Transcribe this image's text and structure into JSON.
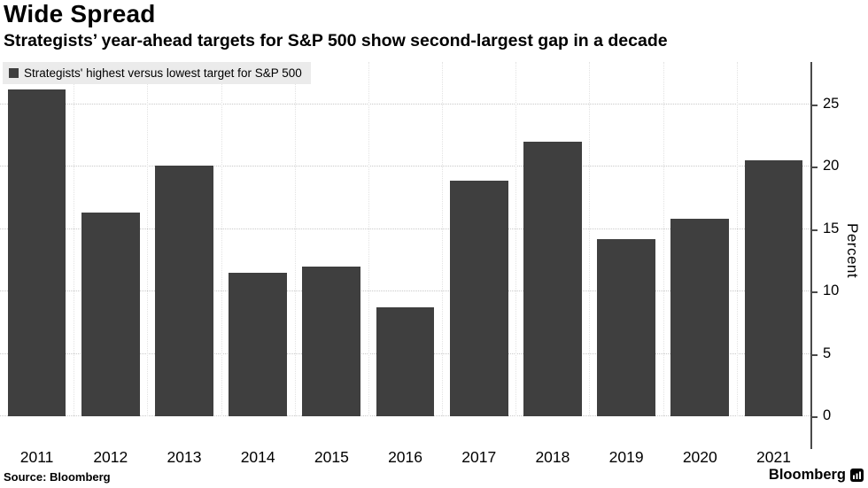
{
  "header": {
    "title": "Wide Spread",
    "subtitle": "Strategists’ year-ahead targets for S&P 500 show second-largest gap in a decade"
  },
  "legend": {
    "label": "Strategists' highest versus lowest target for S&P 500",
    "swatch_color": "#3f3f3f"
  },
  "chart_data": {
    "type": "bar",
    "title": "Wide Spread",
    "categories": [
      "2011",
      "2012",
      "2013",
      "2014",
      "2015",
      "2016",
      "2017",
      "2018",
      "2019",
      "2020",
      "2021"
    ],
    "values": [
      26.2,
      16.3,
      20.1,
      11.5,
      12.0,
      8.7,
      18.9,
      22.0,
      14.2,
      15.8,
      20.5
    ],
    "xlabel": "",
    "ylabel": "Percent",
    "yticks": [
      0,
      5,
      10,
      15,
      20,
      25
    ],
    "ylim": [
      0,
      28.4
    ],
    "bar_color": "#3f3f3f",
    "grid": "dotted",
    "legend_position": "top-left",
    "y_axis_side": "right"
  },
  "footer": {
    "source": "Source:  Bloomberg",
    "brand": "Bloomberg"
  }
}
